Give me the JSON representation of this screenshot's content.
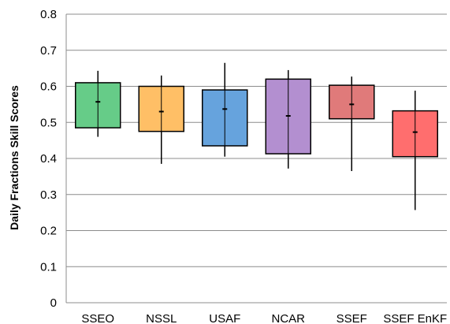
{
  "chart_data": {
    "type": "box",
    "title": "",
    "xlabel": "",
    "ylabel": "Daily Fractions Skill Scores",
    "ylim": [
      0,
      0.8
    ],
    "ytick_labels": [
      "0",
      "0.1",
      "0.2",
      "0.3",
      "0.4",
      "0.5",
      "0.6",
      "0.7",
      "0.8"
    ],
    "ytick_values": [
      0,
      0.1,
      0.2,
      0.3,
      0.4,
      0.5,
      0.6,
      0.7,
      0.8
    ],
    "grid": true,
    "legend": "none",
    "categories": [
      "SSEO",
      "NSSL",
      "USAF",
      "NCAR",
      "SSEF",
      "SSEF EnKF"
    ],
    "boxes": [
      {
        "category": "SSEO",
        "min": 0.46,
        "q1": 0.485,
        "mean": 0.557,
        "q3": 0.61,
        "max": 0.643,
        "color": "#66cc88"
      },
      {
        "category": "NSSL",
        "min": 0.385,
        "q1": 0.475,
        "mean": 0.53,
        "q3": 0.6,
        "max": 0.63,
        "color": "#ffbf66"
      },
      {
        "category": "USAF",
        "min": 0.405,
        "q1": 0.435,
        "mean": 0.537,
        "q3": 0.59,
        "max": 0.665,
        "color": "#66a3dd"
      },
      {
        "category": "NCAR",
        "min": 0.372,
        "q1": 0.413,
        "mean": 0.518,
        "q3": 0.62,
        "max": 0.645,
        "color": "#b38fd0"
      },
      {
        "category": "SSEF",
        "min": 0.365,
        "q1": 0.51,
        "mean": 0.55,
        "q3": 0.603,
        "max": 0.627,
        "color": "#e07a7a"
      },
      {
        "category": "SSEF EnKF",
        "min": 0.257,
        "q1": 0.405,
        "mean": 0.473,
        "q3": 0.532,
        "max": 0.588,
        "color": "#ff6e6e"
      }
    ]
  }
}
